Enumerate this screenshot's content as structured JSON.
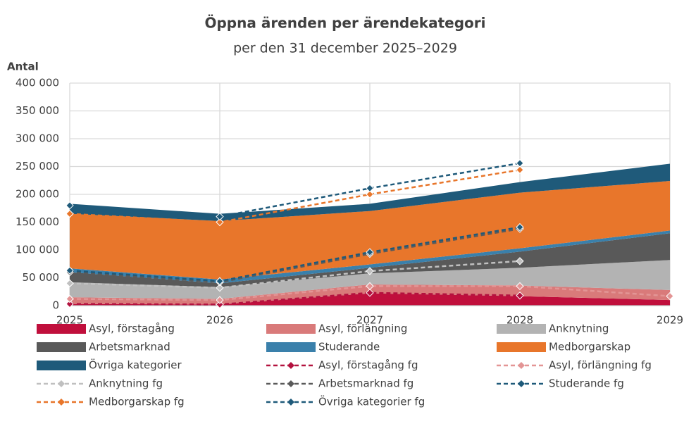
{
  "chart_data": {
    "type": "stacked-area",
    "title": "Öppna ärenden per ärendekategori",
    "subtitle": "per den 31 december 2025–2029",
    "y_label": "Antal",
    "categories": [
      "2025",
      "2026",
      "2027",
      "2028",
      "2029"
    ],
    "ylim": [
      0,
      400000
    ],
    "yticks": [
      0,
      {
        "value": 50000,
        "label": "50 000"
      },
      {
        "value": 100000,
        "label": "100 000"
      },
      {
        "value": 150000,
        "label": "150 000"
      },
      {
        "value": 200000,
        "label": "200 000"
      },
      {
        "value": 250000,
        "label": "250 000"
      },
      {
        "value": 300000,
        "label": "300 000"
      },
      {
        "value": 350000,
        "label": "350 000"
      },
      {
        "value": 400000,
        "label": "400 000"
      }
    ],
    "grid": true,
    "series": [
      {
        "name": "Asyl, förstagång",
        "color": "#c00f3c",
        "values": [
          3000,
          2000,
          22000,
          17000,
          10000
        ]
      },
      {
        "name": "Asyl, förlängning",
        "color": "#d97a7a",
        "values": [
          12000,
          10000,
          16000,
          19000,
          18000
        ]
      },
      {
        "name": "Anknytning",
        "color": "#b3b3b3",
        "values": [
          27000,
          21000,
          20000,
          32000,
          54000
        ]
      },
      {
        "name": "Arbetsmarknad",
        "color": "#595959",
        "values": [
          18000,
          7000,
          10000,
          29000,
          48000
        ]
      },
      {
        "name": "Studerande",
        "color": "#3a80ab",
        "values": [
          7000,
          7000,
          6000,
          6000,
          5000
        ]
      },
      {
        "name": "Medborgarskap",
        "color": "#e8762b",
        "values": [
          98000,
          105000,
          96000,
          100000,
          89000
        ]
      },
      {
        "name": "Övriga kategorier",
        "color": "#1f5a7a",
        "values": [
          18000,
          13000,
          13000,
          19000,
          31000
        ]
      }
    ],
    "line_series": [
      {
        "name": "Asyl, förstagång fg",
        "color": "#b3123f",
        "values": [
          3000,
          2000,
          23000,
          18000,
          null
        ]
      },
      {
        "name": "Asyl, förlängning fg",
        "color": "#e39595",
        "values": [
          12000,
          10000,
          35000,
          35000,
          17000
        ]
      },
      {
        "name": "Anknytning fg",
        "color": "#c0c0c0",
        "values": [
          40000,
          32000,
          62000,
          80000,
          null
        ]
      },
      {
        "name": "Arbetsmarknad fg",
        "color": "#5a5a5a",
        "values": [
          60000,
          42000,
          93000,
          138000,
          null
        ]
      },
      {
        "name": "Studerande fg",
        "color": "#1f5a7a",
        "values": [
          63000,
          44000,
          96000,
          141000,
          null
        ]
      },
      {
        "name": "Medborgarskap fg",
        "color": "#e8762b",
        "values": [
          165000,
          150000,
          200000,
          244000,
          null
        ]
      },
      {
        "name": "Övriga kategorier fg",
        "color": "#1f5a7a",
        "values": [
          180000,
          160000,
          211000,
          256000,
          null
        ]
      }
    ]
  }
}
